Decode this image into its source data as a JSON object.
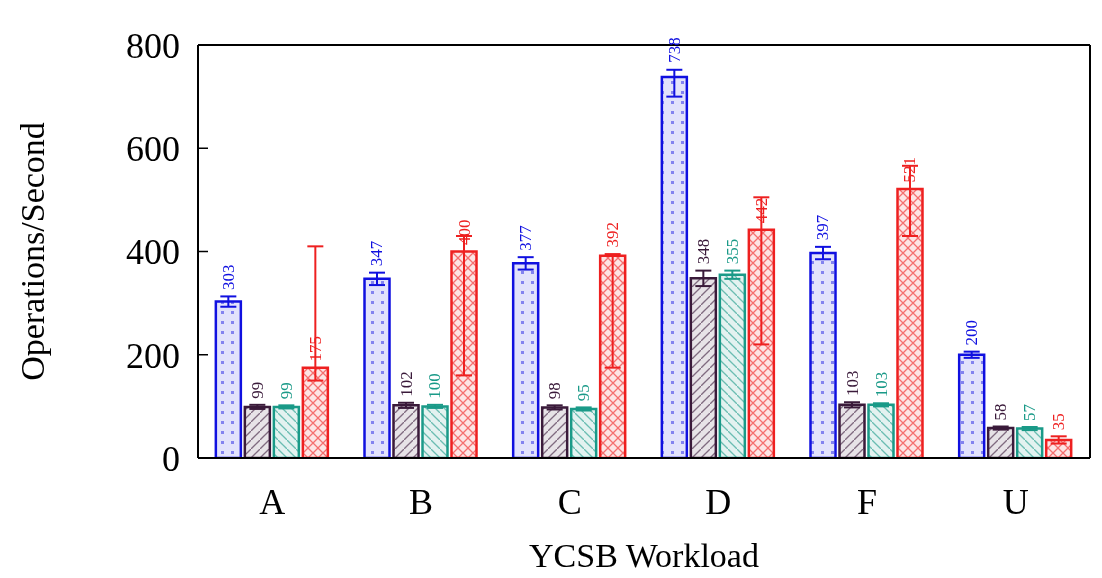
{
  "chart_data": {
    "type": "bar",
    "xlabel": "YCSB Workload",
    "ylabel": "Operations/Second",
    "categories": [
      "A",
      "B",
      "C",
      "D",
      "F",
      "U"
    ],
    "series": [
      {
        "color": "#1010e0",
        "values": [
          303,
          347,
          377,
          738,
          397,
          200
        ],
        "errors": [
          [
            293,
            313
          ],
          [
            335,
            359
          ],
          [
            365,
            389
          ],
          [
            700,
            752
          ],
          [
            385,
            409
          ],
          [
            194,
            206
          ]
        ]
      },
      {
        "color": "#3a1a3a",
        "values": [
          99,
          102,
          98,
          348,
          103,
          58
        ],
        "errors": [
          [
            95,
            103
          ],
          [
            97,
            107
          ],
          [
            94,
            102
          ],
          [
            333,
            363
          ],
          [
            98,
            108
          ],
          [
            55,
            61
          ]
        ]
      },
      {
        "color": "#1a9a88",
        "values": [
          99,
          100,
          95,
          355,
          103,
          57
        ],
        "errors": [
          [
            96,
            102
          ],
          [
            97,
            103
          ],
          [
            92,
            98
          ],
          [
            347,
            363
          ],
          [
            100,
            106
          ],
          [
            54,
            60
          ]
        ]
      },
      {
        "color": "#ee2020",
        "values": [
          175,
          400,
          392,
          442,
          521,
          35
        ],
        "errors": [
          [
            150,
            410
          ],
          [
            160,
            430
          ],
          [
            175,
            395
          ],
          [
            220,
            505
          ],
          [
            430,
            566
          ],
          [
            28,
            42
          ]
        ]
      }
    ],
    "ylim": [
      0,
      800
    ],
    "yticks": [
      0,
      200,
      400,
      600,
      800
    ],
    "data_labels": true,
    "grid": false,
    "legend": false
  }
}
